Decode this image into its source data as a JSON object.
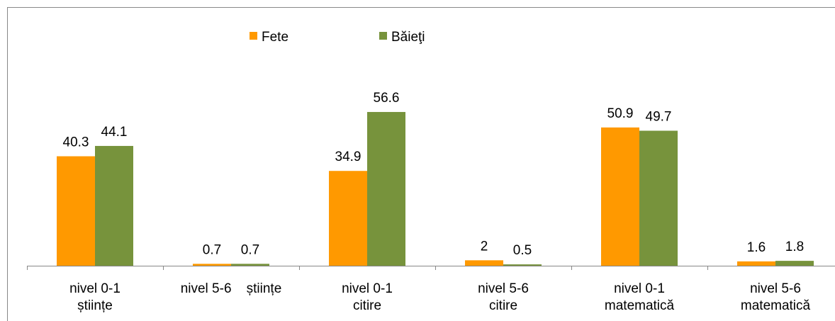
{
  "chart_data": {
    "type": "bar",
    "categories": [
      "nivel 0-1\nștiințe",
      "nivel 5-6    științe",
      "nivel 0-1\ncitire",
      "nivel 5-6\ncitire",
      "nivel 0-1\nmatematică",
      "nivel 5-6\nmatematică"
    ],
    "series": [
      {
        "name": "Fete",
        "color": "#ff9900",
        "values": [
          40.3,
          0.7,
          34.9,
          2,
          50.9,
          1.6
        ]
      },
      {
        "name": "Băieţi",
        "color": "#77933c",
        "values": [
          44.1,
          0.7,
          56.6,
          0.5,
          49.7,
          1.8
        ]
      }
    ],
    "ylim": [
      0,
      60
    ],
    "legend": "top"
  }
}
